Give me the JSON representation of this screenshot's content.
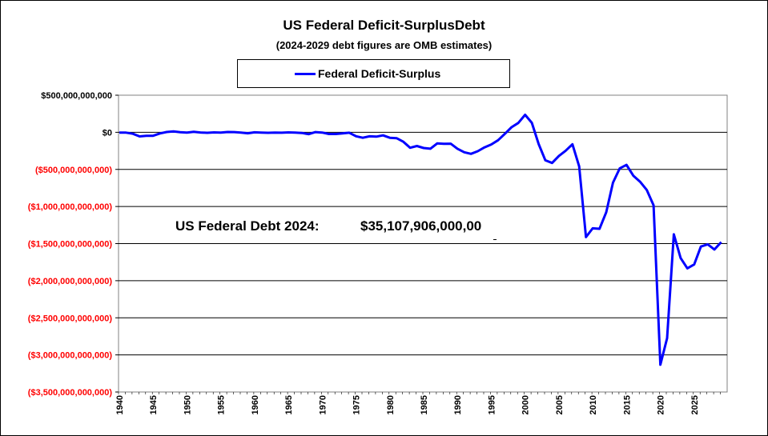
{
  "title": "US Federal Deficit-SurplusDebt",
  "subtitle": "(2024-2029 debt figures are OMB estimates)",
  "legend": {
    "label": "Federal Deficit-Surplus",
    "color": "#0000FF"
  },
  "annotation": {
    "label": "US Federal Debt 2024:",
    "value": "$35,107,906,000,00"
  },
  "colors": {
    "positive_tick": "#000000",
    "negative_tick": "#FF0000",
    "series": "#0000FF",
    "grid": "#000000"
  },
  "chart_data": {
    "type": "line",
    "title": "US Federal Deficit-SurplusDebt",
    "subtitle": "(2024-2029 debt figures are OMB estimates)",
    "xlabel": "",
    "ylabel": "",
    "xlim": [
      1940,
      2029
    ],
    "ylim": [
      -3500000000000,
      500000000000
    ],
    "grid": "horizontal",
    "legend_position": "top-center",
    "y_ticks": [
      {
        "value": 500000000000,
        "label": "$500,000,000,000"
      },
      {
        "value": 0,
        "label": "$0"
      },
      {
        "value": -500000000000,
        "label": "($500,000,000,000)"
      },
      {
        "value": -1000000000000,
        "label": "($1,000,000,000,000)"
      },
      {
        "value": -1500000000000,
        "label": "($1,500,000,000,000)"
      },
      {
        "value": -2000000000000,
        "label": "($2,000,000,000,000)"
      },
      {
        "value": -2500000000000,
        "label": "($2,500,000,000,000)"
      },
      {
        "value": -3000000000000,
        "label": "($3,000,000,000,000)"
      },
      {
        "value": -3500000000000,
        "label": "($3,500,000,000,000)"
      }
    ],
    "x_ticks": [
      "1940",
      "1945",
      "1950",
      "1955",
      "1960",
      "1965",
      "1970",
      "1975",
      "1980",
      "1985",
      "1990",
      "1995",
      "2000",
      "2005",
      "2010",
      "2015",
      "2020",
      "2025"
    ],
    "series": [
      {
        "name": "Federal Deficit-Surplus",
        "x": [
          1940,
          1941,
          1942,
          1943,
          1944,
          1945,
          1946,
          1947,
          1948,
          1949,
          1950,
          1951,
          1952,
          1953,
          1954,
          1955,
          1956,
          1957,
          1958,
          1959,
          1960,
          1961,
          1962,
          1963,
          1964,
          1965,
          1966,
          1967,
          1968,
          1969,
          1970,
          1971,
          1972,
          1973,
          1974,
          1975,
          1976,
          1977,
          1978,
          1979,
          1980,
          1981,
          1982,
          1983,
          1984,
          1985,
          1986,
          1987,
          1988,
          1989,
          1990,
          1991,
          1992,
          1993,
          1994,
          1995,
          1996,
          1997,
          1998,
          1999,
          2000,
          2001,
          2002,
          2003,
          2004,
          2005,
          2006,
          2007,
          2008,
          2009,
          2010,
          2011,
          2012,
          2013,
          2014,
          2015,
          2016,
          2017,
          2018,
          2019,
          2020,
          2021,
          2022,
          2023,
          2024,
          2025,
          2026,
          2027,
          2028,
          2029
        ],
        "values": [
          -3000000000,
          -5000000000,
          -20000000000,
          -55000000000,
          -47000000000,
          -47000000000,
          -15000000000,
          4000000000,
          12000000000,
          1000000000,
          -3000000000,
          6000000000,
          -2000000000,
          -7000000000,
          -1000000000,
          -3000000000,
          4000000000,
          3000000000,
          -3000000000,
          -13000000000,
          0,
          -3000000000,
          -7000000000,
          -5000000000,
          -6000000000,
          -1000000000,
          -4000000000,
          -9000000000,
          -25000000000,
          3000000000,
          -3000000000,
          -23000000000,
          -23000000000,
          -15000000000,
          -6000000000,
          -53000000000,
          -74000000000,
          -54000000000,
          -59000000000,
          -41000000000,
          -74000000000,
          -79000000000,
          -128000000000,
          -208000000000,
          -185000000000,
          -212000000000,
          -221000000000,
          -150000000000,
          -155000000000,
          -153000000000,
          -221000000000,
          -269000000000,
          -290000000000,
          -255000000000,
          -203000000000,
          -164000000000,
          -107000000000,
          -22000000000,
          69000000000,
          126000000000,
          236000000000,
          128000000000,
          -158000000000,
          -378000000000,
          -413000000000,
          -318000000000,
          -248000000000,
          -161000000000,
          -459000000000,
          -1413000000000,
          -1294000000000,
          -1300000000000,
          -1077000000000,
          -680000000000,
          -485000000000,
          -439000000000,
          -585000000000,
          -665000000000,
          -779000000000,
          -984000000000,
          -3132000000000,
          -2775000000000,
          -1375000000000,
          -1695000000000,
          -1833000000000,
          -1781000000000,
          -1540000000000,
          -1510000000000,
          -1580000000000,
          -1480000000000
        ]
      }
    ]
  }
}
